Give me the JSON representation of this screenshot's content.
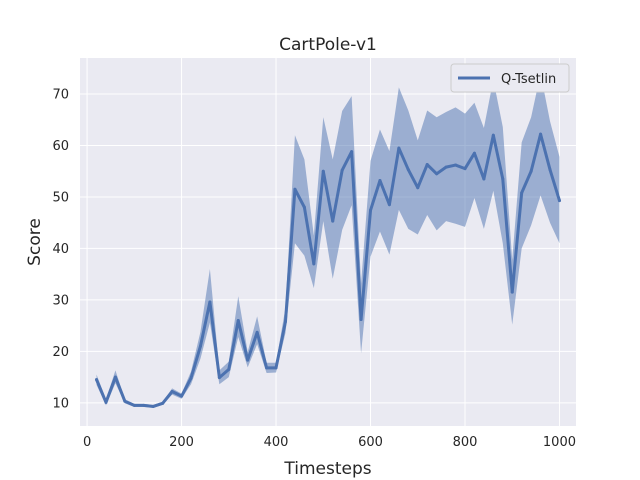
{
  "chart_data": {
    "type": "line",
    "title": "CartPole-v1",
    "xlabel": "Timesteps",
    "ylabel": "Score",
    "xlim": [
      -15,
      1035
    ],
    "ylim": [
      5.5,
      77
    ],
    "xticks": [
      0,
      200,
      400,
      600,
      800,
      1000
    ],
    "yticks": [
      10,
      20,
      30,
      40,
      50,
      60,
      70
    ],
    "grid": true,
    "legend_position": "top-right",
    "colors": {
      "line": "#4c72b0",
      "band": "#4c72b0",
      "panel": "#eaeaf2",
      "grid": "#ffffff"
    },
    "series": [
      {
        "name": "Q-Tsetlin",
        "x": [
          20,
          40,
          60,
          80,
          100,
          120,
          140,
          160,
          180,
          200,
          220,
          240,
          260,
          280,
          300,
          320,
          340,
          360,
          380,
          400,
          420,
          440,
          460,
          480,
          500,
          520,
          540,
          560,
          580,
          600,
          620,
          640,
          660,
          680,
          700,
          720,
          740,
          760,
          780,
          800,
          820,
          840,
          860,
          880,
          900,
          920,
          940,
          960,
          980,
          1000
        ],
        "mean": [
          14.5,
          10.1,
          15.0,
          10.3,
          9.5,
          9.5,
          9.3,
          9.9,
          12.2,
          11.3,
          14.8,
          21.0,
          29.6,
          14.9,
          16.5,
          26.0,
          18.3,
          23.7,
          16.8,
          16.8,
          25.8,
          51.5,
          48.0,
          37.0,
          55.0,
          45.3,
          55.2,
          58.8,
          26.2,
          47.4,
          53.2,
          48.5,
          59.5,
          55.3,
          51.8,
          56.3,
          54.5,
          55.8,
          56.2,
          55.5,
          58.5,
          53.5,
          62.0,
          53.5,
          31.5,
          50.8,
          55.0,
          62.2,
          55.3,
          49.3
        ],
        "lower": [
          13.5,
          9.5,
          13.8,
          9.9,
          9.2,
          9.2,
          9.0,
          9.6,
          11.6,
          10.8,
          13.6,
          18.6,
          25.6,
          13.6,
          15.0,
          22.8,
          16.9,
          21.4,
          15.8,
          15.9,
          23.6,
          41.0,
          38.6,
          32.3,
          45.3,
          34.1,
          43.6,
          48.4,
          19.6,
          38.4,
          43.3,
          38.8,
          47.5,
          43.8,
          42.7,
          46.5,
          43.5,
          45.3,
          44.8,
          44.2,
          49.8,
          43.8,
          51.2,
          41.0,
          25.2,
          40.0,
          44.5,
          50.3,
          45.0,
          41.0
        ],
        "upper": [
          15.5,
          10.7,
          16.3,
          10.7,
          9.8,
          9.8,
          9.6,
          10.2,
          12.8,
          11.8,
          16.1,
          23.8,
          36.0,
          16.3,
          18.0,
          30.7,
          19.9,
          26.8,
          17.8,
          17.8,
          28.5,
          62.0,
          57.3,
          42.5,
          65.5,
          57.3,
          66.7,
          69.6,
          33.2,
          57.0,
          63.1,
          58.9,
          71.3,
          66.8,
          61.0,
          66.8,
          65.5,
          66.5,
          67.4,
          66.2,
          68.3,
          63.4,
          72.8,
          63.6,
          37.8,
          60.6,
          65.5,
          74.0,
          64.7,
          57.8
        ]
      }
    ]
  }
}
